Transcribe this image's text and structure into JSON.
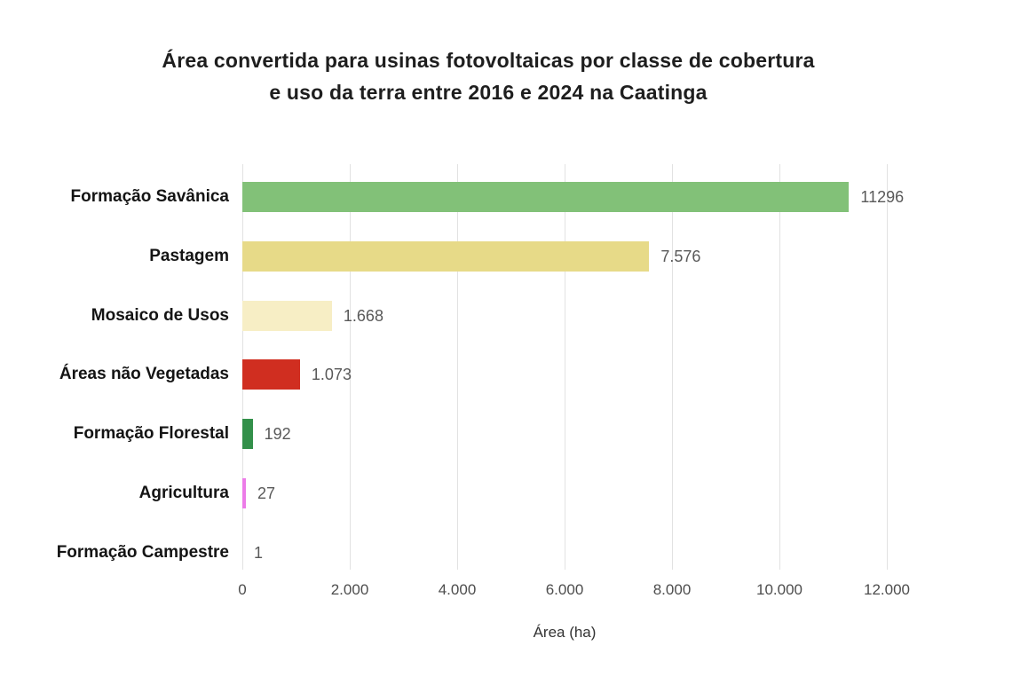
{
  "chart_data": {
    "type": "bar",
    "orientation": "horizontal",
    "title": "Área convertida para usinas fotovoltaicas por classe de cobertura e uso da terra entre 2016 e 2024 na Caatinga",
    "title_lines": [
      "Área convertida para usinas fotovoltaicas por classe de cobertura",
      "e uso da terra entre 2016 e 2024 na Caatinga"
    ],
    "categories": [
      "Formação Savânica",
      "Pastagem",
      "Mosaico de Usos",
      "Áreas não Vegetadas",
      "Formação Florestal",
      "Agricultura",
      "Formação Campestre"
    ],
    "values": [
      11296,
      7576,
      1668,
      1073,
      192,
      27,
      1
    ],
    "value_labels": [
      "11296",
      "7.576",
      "1.668",
      "1.073",
      "192",
      "27",
      "1"
    ],
    "bar_colors": [
      "#82C178",
      "#E7DA88",
      "#F7EEC5",
      "#D02E20",
      "#33904A",
      "#EC7CE8",
      "#CCCCCC"
    ],
    "xlabel": "Área (ha)",
    "xlim": [
      0,
      12000
    ],
    "x_ticks": [
      0,
      2000,
      4000,
      6000,
      8000,
      10000,
      12000
    ],
    "x_tick_labels": [
      "0",
      "2.000",
      "4.000",
      "6.000",
      "8.000",
      "10.000",
      "12.000"
    ],
    "grid": "vertical-only",
    "gridline_color": "#e2e2e2",
    "legend": "none",
    "background_color": "#ffffff",
    "title_color": "#1e1e1e",
    "category_label_color": "#141414",
    "value_label_color": "#595959",
    "tick_label_color": "#4d4d4d"
  }
}
